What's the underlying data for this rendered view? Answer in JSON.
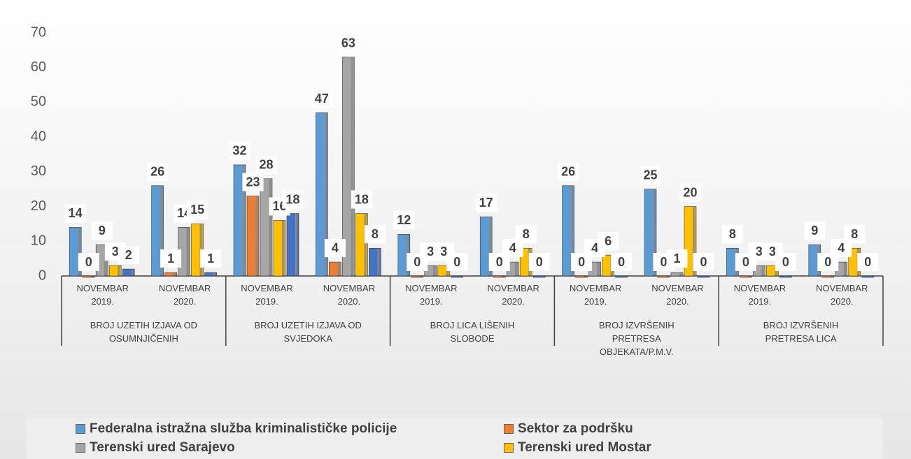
{
  "chart_data": {
    "type": "bar",
    "groups": [
      {
        "label": "BROJ UZETIH IZJAVA OD OSUMNJIČENIH",
        "categories": [
          "NOVEMBAR 2019.",
          "NOVEMBAR 2020."
        ]
      },
      {
        "label": "BROJ UZETIH IZJAVA OD SVJEDOKA",
        "categories": [
          "NOVEMBAR 2019.",
          "NOVEMBAR 2020."
        ]
      },
      {
        "label": "BROJ LICA LIŠENIH SLOBODE",
        "categories": [
          "NOVEMBAR 2019.",
          "NOVEMBAR 2020."
        ]
      },
      {
        "label": "BROJ IZVRŠENIH PRETRESA OBJEKATA/P.M.V.",
        "categories": [
          "NOVEMBAR 2019.",
          "NOVEMBAR 2020."
        ]
      },
      {
        "label": "BROJ IZVRŠENIH PRETRESA LICA",
        "categories": [
          "NOVEMBAR 2019.",
          "NOVEMBAR 2020."
        ]
      }
    ],
    "series": [
      {
        "name": "Federalna istražna služba kriminalističke policije",
        "color": "#5b9bd5",
        "values": [
          14,
          26,
          32,
          47,
          12,
          17,
          26,
          25,
          8,
          9
        ]
      },
      {
        "name": "Sektor za podršku",
        "color": "#ed7d31",
        "values": [
          0,
          1,
          23,
          4,
          0,
          0,
          0,
          0,
          0,
          0
        ]
      },
      {
        "name": "Terenski ured Sarajevo",
        "color": "#a5a5a5",
        "values": [
          9,
          14,
          28,
          63,
          3,
          4,
          4,
          1,
          3,
          4
        ]
      },
      {
        "name": "Terenski ured Mostar",
        "color": "#ffc000",
        "values": [
          3,
          15,
          16,
          18,
          3,
          8,
          6,
          20,
          3,
          8
        ]
      },
      {
        "color": "#4472c4",
        "values": [
          2,
          1,
          18,
          8,
          0,
          0,
          0,
          0,
          0,
          0
        ]
      }
    ],
    "ylim": [
      0,
      70
    ],
    "yticks": [
      0,
      10,
      20,
      30,
      40,
      50,
      60,
      70
    ],
    "grid": false
  }
}
